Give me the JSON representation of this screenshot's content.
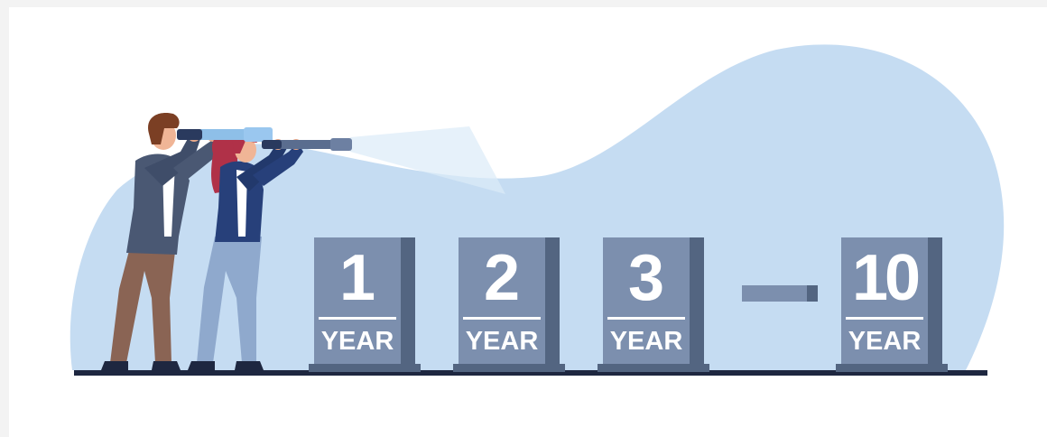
{
  "blocks": [
    {
      "number": "1",
      "label": "YEAR"
    },
    {
      "number": "2",
      "label": "YEAR"
    },
    {
      "number": "3",
      "label": "YEAR"
    },
    {
      "number": "10",
      "label": "YEAR"
    }
  ],
  "colors": {
    "background": "#f3f3f3",
    "panel": "#ffffff",
    "blob": "#c5dcf2",
    "block_front": "#7c8fae",
    "block_side": "#536581",
    "ground": "#1e2740"
  },
  "icons": [
    "man-figure-icon",
    "woman-figure-icon",
    "telescope-icon"
  ]
}
